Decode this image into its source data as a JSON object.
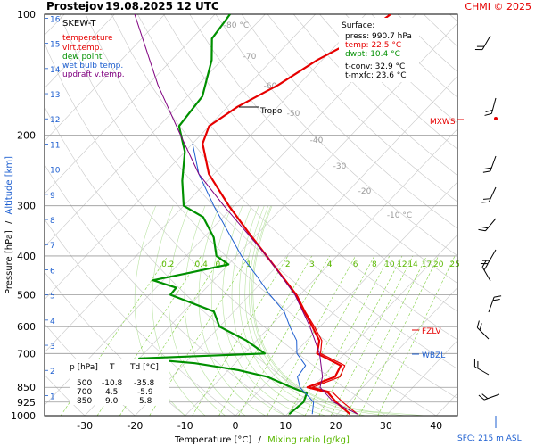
{
  "header": {
    "station": "Prostejov",
    "datetime": "19.08.2025 12 UTC",
    "credit": "CHMI © 2025"
  },
  "legend": {
    "title": "SKEW-T",
    "items": [
      {
        "label": "temperature",
        "color": "#e60000"
      },
      {
        "label": "virt.temp.",
        "color": "#e60000"
      },
      {
        "label": "dew point",
        "color": "#009000"
      },
      {
        "label": "wet bulb temp.",
        "color": "#1e5fd0"
      },
      {
        "label": "updraft v.temp.",
        "color": "#800080"
      }
    ]
  },
  "surface_box": {
    "title": "Surface:",
    "lines": [
      "press: 990.7 hPa",
      "temp: 22.5 °C",
      "dwpt: 10.4 °C"
    ],
    "line_colors": [
      "#000000",
      "#e60000",
      "#009000"
    ],
    "extra": [
      "t-conv: 32.9 °C",
      "t-mxfc: 23.6 °C"
    ]
  },
  "levels_table": {
    "headers": [
      "p [hPa]",
      "T",
      "Td [°C]"
    ],
    "rows": [
      [
        "500",
        "-10.8",
        "-35.8"
      ],
      [
        "700",
        "4.5",
        "-5.9"
      ],
      [
        "850",
        "9.0",
        "5.8"
      ]
    ]
  },
  "labels": {
    "tropo": "Tropo",
    "mxws": "MXWS",
    "fzlv": "FZLV",
    "wbzl": "WBZL",
    "sfc": "SFC: 215 m ASL",
    "y_axis_left": "Pressure [hPa]",
    "y_axis_sep": "/",
    "y_axis_right": "Altitude [km]",
    "x_axis_left": "Temperature [°C]",
    "x_axis_sep": "/",
    "x_axis_right": "Mixing ratio [g/kg]"
  },
  "chart_data": {
    "type": "line",
    "x_axis": {
      "label": "Temperature [°C]",
      "ticks": [
        -30,
        -20,
        -10,
        0,
        10,
        20,
        30,
        40
      ],
      "range": [
        -40,
        46
      ]
    },
    "y_axis": {
      "label": "Pressure [hPa]",
      "scale": "log",
      "range": [
        1000,
        100
      ],
      "ticks": [
        100,
        200,
        300,
        400,
        500,
        600,
        700,
        850,
        925,
        1000
      ]
    },
    "altitude_ticks_km": [
      1,
      2,
      3,
      4,
      5,
      6,
      7,
      8,
      9,
      10,
      11,
      12,
      13,
      14,
      15,
      16
    ],
    "mixing_ratio_labels": [
      "0.2",
      "0.4",
      "0.6",
      "1",
      "2",
      "3",
      "4",
      "6",
      "8",
      "10",
      "12",
      "14",
      "17",
      "20",
      "25"
    ],
    "isotherm_labels": [
      "-80 °C",
      "-70",
      "-60",
      "-50",
      "-40",
      "-30",
      "-20",
      "-10 °C"
    ],
    "altitude_labels": [
      "1",
      "2",
      "3",
      "4",
      "5",
      "6",
      "7",
      "8",
      "9",
      "10",
      "11",
      "12",
      "13",
      "14",
      "15",
      "16"
    ],
    "x_tick_labels": [
      "-30",
      "-20",
      "-10",
      "0",
      "10",
      "20",
      "30",
      "40"
    ],
    "y_tick_labels": [
      "100",
      "200",
      "300",
      "400",
      "500",
      "600",
      "700",
      "850",
      "925",
      "1000"
    ],
    "series": [
      {
        "name": "temperature",
        "color": "#e60000",
        "points": [
          [
            990.7,
            22.5
          ],
          [
            925,
            17.5
          ],
          [
            875,
            14
          ],
          [
            850,
            9.0
          ],
          [
            800,
            12.5
          ],
          [
            750,
            11.5
          ],
          [
            700,
            4.5
          ],
          [
            650,
            2.5
          ],
          [
            600,
            -1.5
          ],
          [
            550,
            -6
          ],
          [
            500,
            -10.8
          ],
          [
            450,
            -17
          ],
          [
            400,
            -24
          ],
          [
            350,
            -32
          ],
          [
            300,
            -41
          ],
          [
            250,
            -51
          ],
          [
            210,
            -58
          ],
          [
            190,
            -60
          ],
          [
            170,
            -58
          ],
          [
            150,
            -54
          ],
          [
            130,
            -51
          ],
          [
            115,
            -47
          ],
          [
            100,
            -45
          ]
        ]
      },
      {
        "name": "virt.temp.",
        "color": "#e60000",
        "points": [
          [
            990.7,
            24
          ],
          [
            925,
            18.8
          ],
          [
            875,
            15
          ],
          [
            850,
            10
          ],
          [
            800,
            13.5
          ],
          [
            750,
            12.3
          ],
          [
            700,
            5.2
          ],
          [
            650,
            3
          ],
          [
            600,
            -1.1
          ],
          [
            550,
            -5.8
          ],
          [
            500,
            -10.6
          ],
          [
            450,
            -16.9
          ]
        ]
      },
      {
        "name": "dew point",
        "color": "#009000",
        "points": [
          [
            990.7,
            10.4
          ],
          [
            925,
            11
          ],
          [
            880,
            10
          ],
          [
            850,
            5.8
          ],
          [
            800,
            -1
          ],
          [
            770,
            -8
          ],
          [
            740,
            -18
          ],
          [
            720,
            -30
          ],
          [
            700,
            -5.9
          ],
          [
            650,
            -12
          ],
          [
            600,
            -20
          ],
          [
            550,
            -24
          ],
          [
            500,
            -35.8
          ],
          [
            480,
            -36
          ],
          [
            460,
            -42
          ],
          [
            440,
            -36
          ],
          [
            420,
            -30
          ],
          [
            400,
            -34
          ],
          [
            360,
            -38
          ],
          [
            320,
            -44
          ],
          [
            300,
            -50
          ],
          [
            260,
            -55
          ],
          [
            220,
            -60
          ],
          [
            190,
            -66
          ],
          [
            160,
            -67
          ],
          [
            130,
            -72
          ],
          [
            115,
            -76
          ],
          [
            100,
            -77
          ]
        ]
      },
      {
        "name": "wet bulb temp.",
        "color": "#1e5fd0",
        "points": [
          [
            990.7,
            15
          ],
          [
            925,
            13
          ],
          [
            850,
            7.5
          ],
          [
            800,
            5
          ],
          [
            750,
            4.5
          ],
          [
            700,
            0.5
          ],
          [
            650,
            -2
          ],
          [
            600,
            -6
          ],
          [
            550,
            -10
          ],
          [
            500,
            -16
          ],
          [
            450,
            -22
          ],
          [
            400,
            -29
          ],
          [
            350,
            -36
          ],
          [
            300,
            -44
          ],
          [
            250,
            -53
          ],
          [
            210,
            -60
          ]
        ]
      },
      {
        "name": "updraft v.temp.",
        "color": "#800080",
        "points": [
          [
            990.7,
            24
          ],
          [
            925,
            17
          ],
          [
            850,
            11.5
          ],
          [
            800,
            10
          ],
          [
            700,
            5
          ],
          [
            600,
            -2
          ],
          [
            500,
            -11
          ],
          [
            400,
            -24
          ],
          [
            300,
            -42
          ],
          [
            250,
            -53
          ],
          [
            200,
            -64
          ],
          [
            150,
            -78
          ],
          [
            100,
            -96
          ]
        ]
      }
    ]
  }
}
